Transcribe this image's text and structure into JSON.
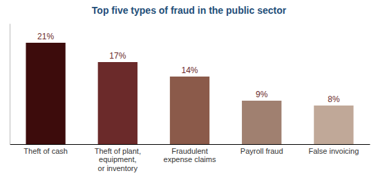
{
  "chart_data": {
    "type": "bar",
    "title": "Top five types of fraud in the public sector",
    "categories": [
      "Theft of cash",
      "Theft of plant,\nequipment,\nor inventory",
      "Fraudulent\nexpense claims",
      "Payroll fraud",
      "False invoicing"
    ],
    "values": [
      21,
      17,
      14,
      9,
      8
    ],
    "value_labels": [
      "21%",
      "17%",
      "14%",
      "9%",
      "8%"
    ],
    "colors": [
      "#3d0c0c",
      "#6b2a2a",
      "#8b5a4a",
      "#a08070",
      "#c0a898"
    ],
    "ylim": [
      0,
      25
    ],
    "data_labels": true,
    "tick_labels": "x"
  }
}
